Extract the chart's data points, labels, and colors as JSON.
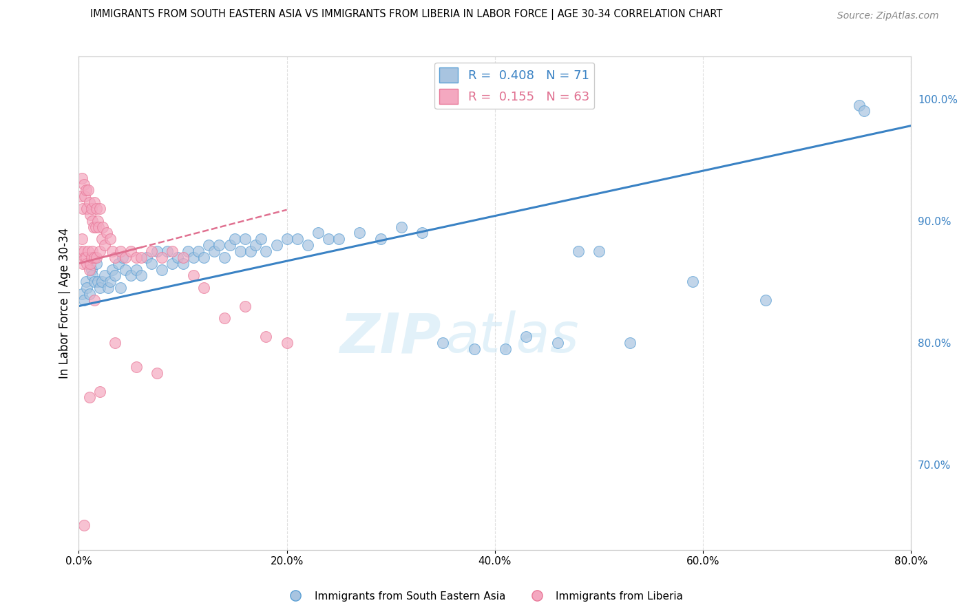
{
  "title": "IMMIGRANTS FROM SOUTH EASTERN ASIA VS IMMIGRANTS FROM LIBERIA IN LABOR FORCE | AGE 30-34 CORRELATION CHART",
  "source": "Source: ZipAtlas.com",
  "ylabel": "In Labor Force | Age 30-34",
  "xlabel_vals": [
    0.0,
    20.0,
    40.0,
    60.0,
    80.0
  ],
  "ylabel_right_vals": [
    70.0,
    80.0,
    90.0,
    100.0
  ],
  "xlim": [
    0.0,
    80.0
  ],
  "ylim": [
    63.0,
    103.5
  ],
  "legend_blue_label": "R =  0.408   N = 71",
  "legend_pink_label": "R =  0.155   N = 63",
  "legend_blue_color": "#a8c4e0",
  "legend_pink_color": "#f4a8c0",
  "blue_color": "#a8c4e0",
  "pink_color": "#f4a8c0",
  "blue_edge_color": "#5a9fd4",
  "pink_edge_color": "#e87898",
  "blue_line_color": "#3a82c4",
  "pink_line_color": "#e07090",
  "watermark_color": "#d0e8f5",
  "blue_scatter_x": [
    0.3,
    0.5,
    0.7,
    0.8,
    1.0,
    1.2,
    1.3,
    1.5,
    1.7,
    1.8,
    2.0,
    2.2,
    2.5,
    2.8,
    3.0,
    3.2,
    3.5,
    3.8,
    4.0,
    4.2,
    4.5,
    5.0,
    5.5,
    6.0,
    6.5,
    7.0,
    7.5,
    8.0,
    8.5,
    9.0,
    9.5,
    10.0,
    10.5,
    11.0,
    11.5,
    12.0,
    12.5,
    13.0,
    13.5,
    14.0,
    14.5,
    15.0,
    15.5,
    16.0,
    16.5,
    17.0,
    17.5,
    18.0,
    19.0,
    20.0,
    21.0,
    22.0,
    23.0,
    24.0,
    25.0,
    27.0,
    29.0,
    31.0,
    33.0,
    35.0,
    38.0,
    41.0,
    43.0,
    46.0,
    48.0,
    50.0,
    53.0,
    59.0,
    66.0,
    75.0,
    75.5
  ],
  "blue_scatter_y": [
    84.0,
    83.5,
    85.0,
    84.5,
    84.0,
    86.0,
    85.5,
    85.0,
    86.5,
    85.0,
    84.5,
    85.0,
    85.5,
    84.5,
    85.0,
    86.0,
    85.5,
    86.5,
    84.5,
    87.0,
    86.0,
    85.5,
    86.0,
    85.5,
    87.0,
    86.5,
    87.5,
    86.0,
    87.5,
    86.5,
    87.0,
    86.5,
    87.5,
    87.0,
    87.5,
    87.0,
    88.0,
    87.5,
    88.0,
    87.0,
    88.0,
    88.5,
    87.5,
    88.5,
    87.5,
    88.0,
    88.5,
    87.5,
    88.0,
    88.5,
    88.5,
    88.0,
    89.0,
    88.5,
    88.5,
    89.0,
    88.5,
    89.5,
    89.0,
    80.0,
    79.5,
    79.5,
    80.5,
    80.0,
    87.5,
    87.5,
    80.0,
    85.0,
    83.5,
    99.5,
    99.0
  ],
  "pink_scatter_x": [
    0.1,
    0.2,
    0.3,
    0.3,
    0.4,
    0.4,
    0.5,
    0.5,
    0.6,
    0.6,
    0.7,
    0.7,
    0.8,
    0.8,
    0.9,
    0.9,
    1.0,
    1.0,
    1.1,
    1.1,
    1.2,
    1.2,
    1.3,
    1.3,
    1.4,
    1.5,
    1.5,
    1.6,
    1.7,
    1.7,
    1.8,
    1.9,
    2.0,
    2.0,
    2.2,
    2.3,
    2.5,
    2.7,
    3.0,
    3.2,
    3.5,
    4.0,
    4.5,
    5.0,
    5.5,
    6.0,
    7.0,
    8.0,
    9.0,
    10.0,
    11.0,
    12.0,
    14.0,
    16.0,
    18.0,
    20.0,
    1.5,
    3.5,
    5.5,
    7.5,
    0.5,
    1.0,
    2.0
  ],
  "pink_scatter_y": [
    87.5,
    92.0,
    93.5,
    88.5,
    91.0,
    86.5,
    93.0,
    87.5,
    92.0,
    87.0,
    92.5,
    87.0,
    91.0,
    86.5,
    92.5,
    87.5,
    91.5,
    86.0,
    90.5,
    86.5,
    91.0,
    87.0,
    90.0,
    87.5,
    89.5,
    91.5,
    87.0,
    89.5,
    91.0,
    87.0,
    90.0,
    89.5,
    91.0,
    87.5,
    88.5,
    89.5,
    88.0,
    89.0,
    88.5,
    87.5,
    87.0,
    87.5,
    87.0,
    87.5,
    87.0,
    87.0,
    87.5,
    87.0,
    87.5,
    87.0,
    85.5,
    84.5,
    82.0,
    83.0,
    80.5,
    80.0,
    83.5,
    80.0,
    78.0,
    77.5,
    65.0,
    75.5,
    76.0
  ]
}
